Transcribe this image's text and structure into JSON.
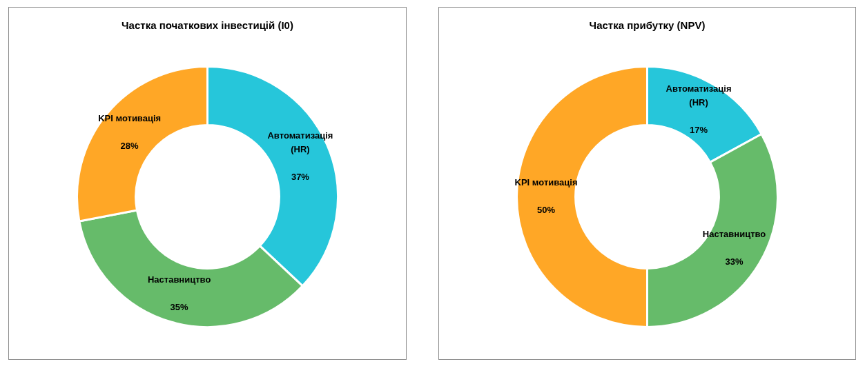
{
  "chart_data": [
    {
      "type": "donut",
      "title": "Частка початкових інвестицій (I0)",
      "categories": [
        "Автоматизація (HR)",
        "Наставництво",
        "KPI мотивація"
      ],
      "values": [
        37,
        35,
        28
      ],
      "value_labels": [
        "37%",
        "35%",
        "28%"
      ],
      "colors": [
        "#26c6da",
        "#66bb6a",
        "#ffa726"
      ],
      "legend": false
    },
    {
      "type": "donut",
      "title": "Частка прибутку (NPV)",
      "categories": [
        "Автоматизація (HR)",
        "Наставництво",
        "KPI мотивація"
      ],
      "values": [
        17,
        33,
        50
      ],
      "value_labels": [
        "17%",
        "33%",
        "50%"
      ],
      "colors": [
        "#26c6da",
        "#66bb6a",
        "#ffa726"
      ],
      "legend": false
    }
  ]
}
